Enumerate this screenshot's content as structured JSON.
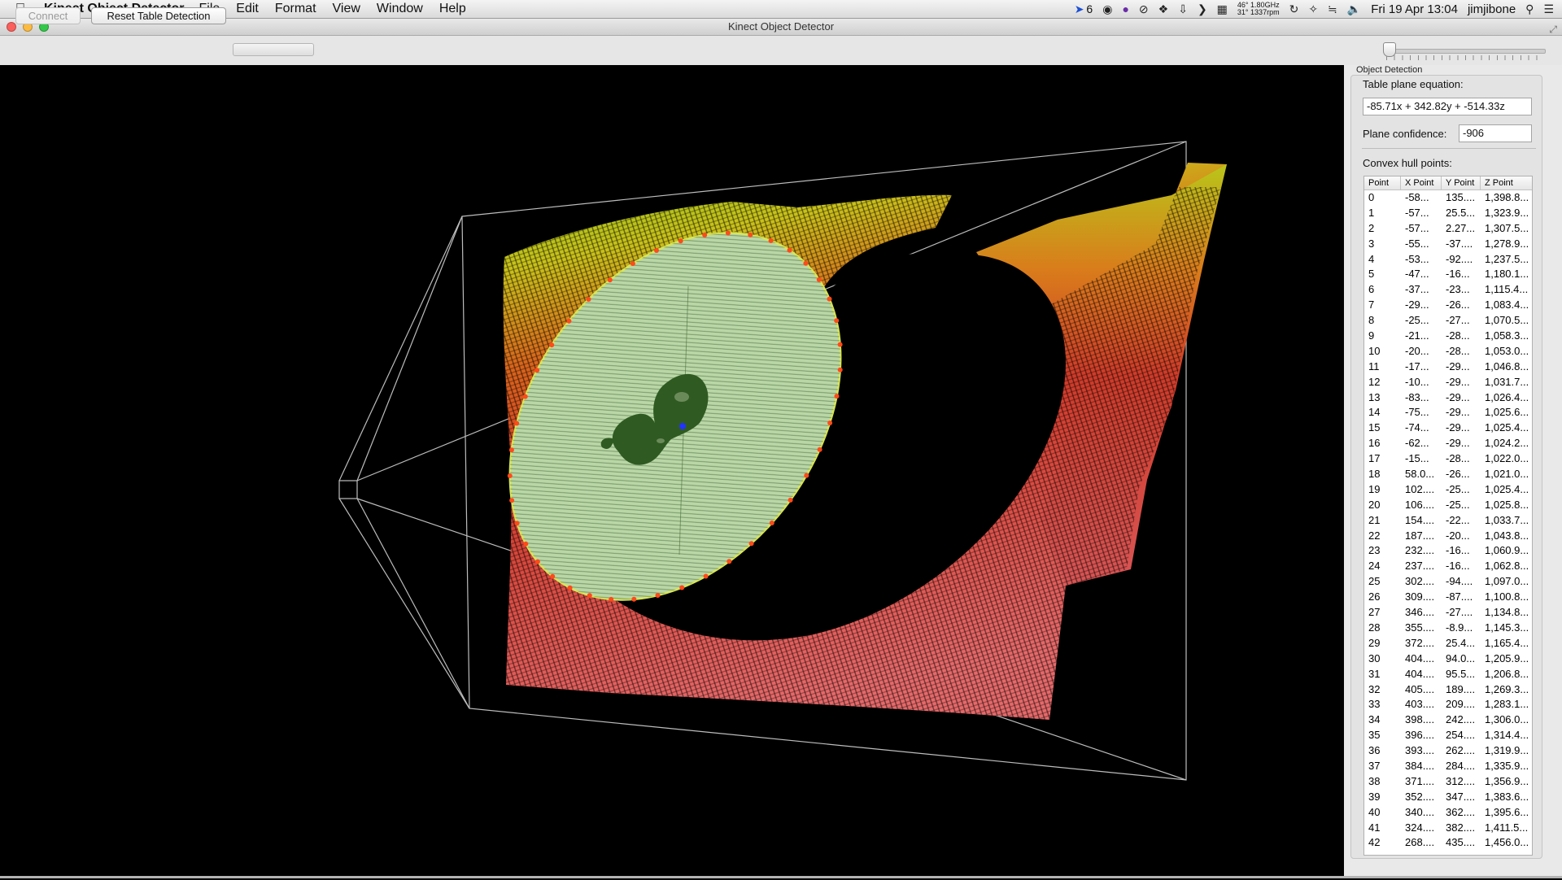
{
  "menubar": {
    "app_name": "Kinect Object Detector",
    "menus": [
      "File",
      "Edit",
      "Format",
      "View",
      "Window",
      "Help"
    ],
    "status": {
      "cursor_count": "6",
      "cpu_temp": "46°",
      "cpu_freq": "1.80GHz",
      "fan_temp": "31°",
      "fan_rpm": "1337rpm",
      "datetime": "Fri 19 Apr  13:04",
      "user": "jimjibone"
    }
  },
  "window": {
    "title": "Kinect Object Detector"
  },
  "toolbar": {
    "connect_label": "Connect",
    "reset_label": "Reset Table Detection",
    "progress_value": 0
  },
  "panel": {
    "group_label": "Object Detection",
    "table_plane_label": "Table plane equation:",
    "table_plane_value": "-85.71x + 342.82y + -514.33z",
    "confidence_label": "Plane confidence:",
    "confidence_value": "-906",
    "hull_label": "Convex hull points:",
    "columns": [
      "Point",
      "X Point",
      "Y Point",
      "Z Point"
    ],
    "rows": [
      [
        "0",
        "-58...",
        "135....",
        "1,398.8..."
      ],
      [
        "1",
        "-57...",
        "25.5...",
        "1,323.9..."
      ],
      [
        "2",
        "-57...",
        "2.27...",
        "1,307.5..."
      ],
      [
        "3",
        "-55...",
        "-37....",
        "1,278.9..."
      ],
      [
        "4",
        "-53...",
        "-92....",
        "1,237.5..."
      ],
      [
        "5",
        "-47...",
        "-16...",
        "1,180.1..."
      ],
      [
        "6",
        "-37...",
        "-23...",
        "1,115.4..."
      ],
      [
        "7",
        "-29...",
        "-26...",
        "1,083.4..."
      ],
      [
        "8",
        "-25...",
        "-27...",
        "1,070.5..."
      ],
      [
        "9",
        "-21...",
        "-28...",
        "1,058.3..."
      ],
      [
        "10",
        "-20...",
        "-28...",
        "1,053.0..."
      ],
      [
        "11",
        "-17...",
        "-29...",
        "1,046.8..."
      ],
      [
        "12",
        "-10...",
        "-29...",
        "1,031.7..."
      ],
      [
        "13",
        "-83...",
        "-29...",
        "1,026.4..."
      ],
      [
        "14",
        "-75...",
        "-29...",
        "1,025.6..."
      ],
      [
        "15",
        "-74...",
        "-29...",
        "1,025.4..."
      ],
      [
        "16",
        "-62...",
        "-29...",
        "1,024.2..."
      ],
      [
        "17",
        "-15...",
        "-28...",
        "1,022.0..."
      ],
      [
        "18",
        "58.0...",
        "-26...",
        "1,021.0..."
      ],
      [
        "19",
        "102....",
        "-25...",
        "1,025.4..."
      ],
      [
        "20",
        "106....",
        "-25...",
        "1,025.8..."
      ],
      [
        "21",
        "154....",
        "-22...",
        "1,033.7..."
      ],
      [
        "22",
        "187....",
        "-20...",
        "1,043.8..."
      ],
      [
        "23",
        "232....",
        "-16...",
        "1,060.9..."
      ],
      [
        "24",
        "237....",
        "-16...",
        "1,062.8..."
      ],
      [
        "25",
        "302....",
        "-94....",
        "1,097.0..."
      ],
      [
        "26",
        "309....",
        "-87....",
        "1,100.8..."
      ],
      [
        "27",
        "346....",
        "-27....",
        "1,134.8..."
      ],
      [
        "28",
        "355....",
        "-8.9...",
        "1,145.3..."
      ],
      [
        "29",
        "372....",
        "25.4...",
        "1,165.4..."
      ],
      [
        "30",
        "404....",
        "94.0...",
        "1,205.9..."
      ],
      [
        "31",
        "404....",
        "95.5...",
        "1,206.8..."
      ],
      [
        "32",
        "405....",
        "189....",
        "1,269.3..."
      ],
      [
        "33",
        "403....",
        "209....",
        "1,283.1..."
      ],
      [
        "34",
        "398....",
        "242....",
        "1,306.0..."
      ],
      [
        "35",
        "396....",
        "254....",
        "1,314.4..."
      ],
      [
        "36",
        "393....",
        "262....",
        "1,319.9..."
      ],
      [
        "37",
        "384....",
        "284....",
        "1,335.9..."
      ],
      [
        "38",
        "371....",
        "312....",
        "1,356.9..."
      ],
      [
        "39",
        "352....",
        "347....",
        "1,383.6..."
      ],
      [
        "40",
        "340....",
        "362....",
        "1,395.6..."
      ],
      [
        "41",
        "324....",
        "382....",
        "1,411.5..."
      ],
      [
        "42",
        "268....",
        "435....",
        "1,456.0..."
      ]
    ]
  },
  "colors": {
    "hull_fill": "#b9d7a6",
    "hull_outline": "#d8e65a",
    "hull_points": "#ff4a1a",
    "object_blob": "#2f5a22",
    "centroid": "#2233ff",
    "frustum": "#bfbfbf"
  }
}
